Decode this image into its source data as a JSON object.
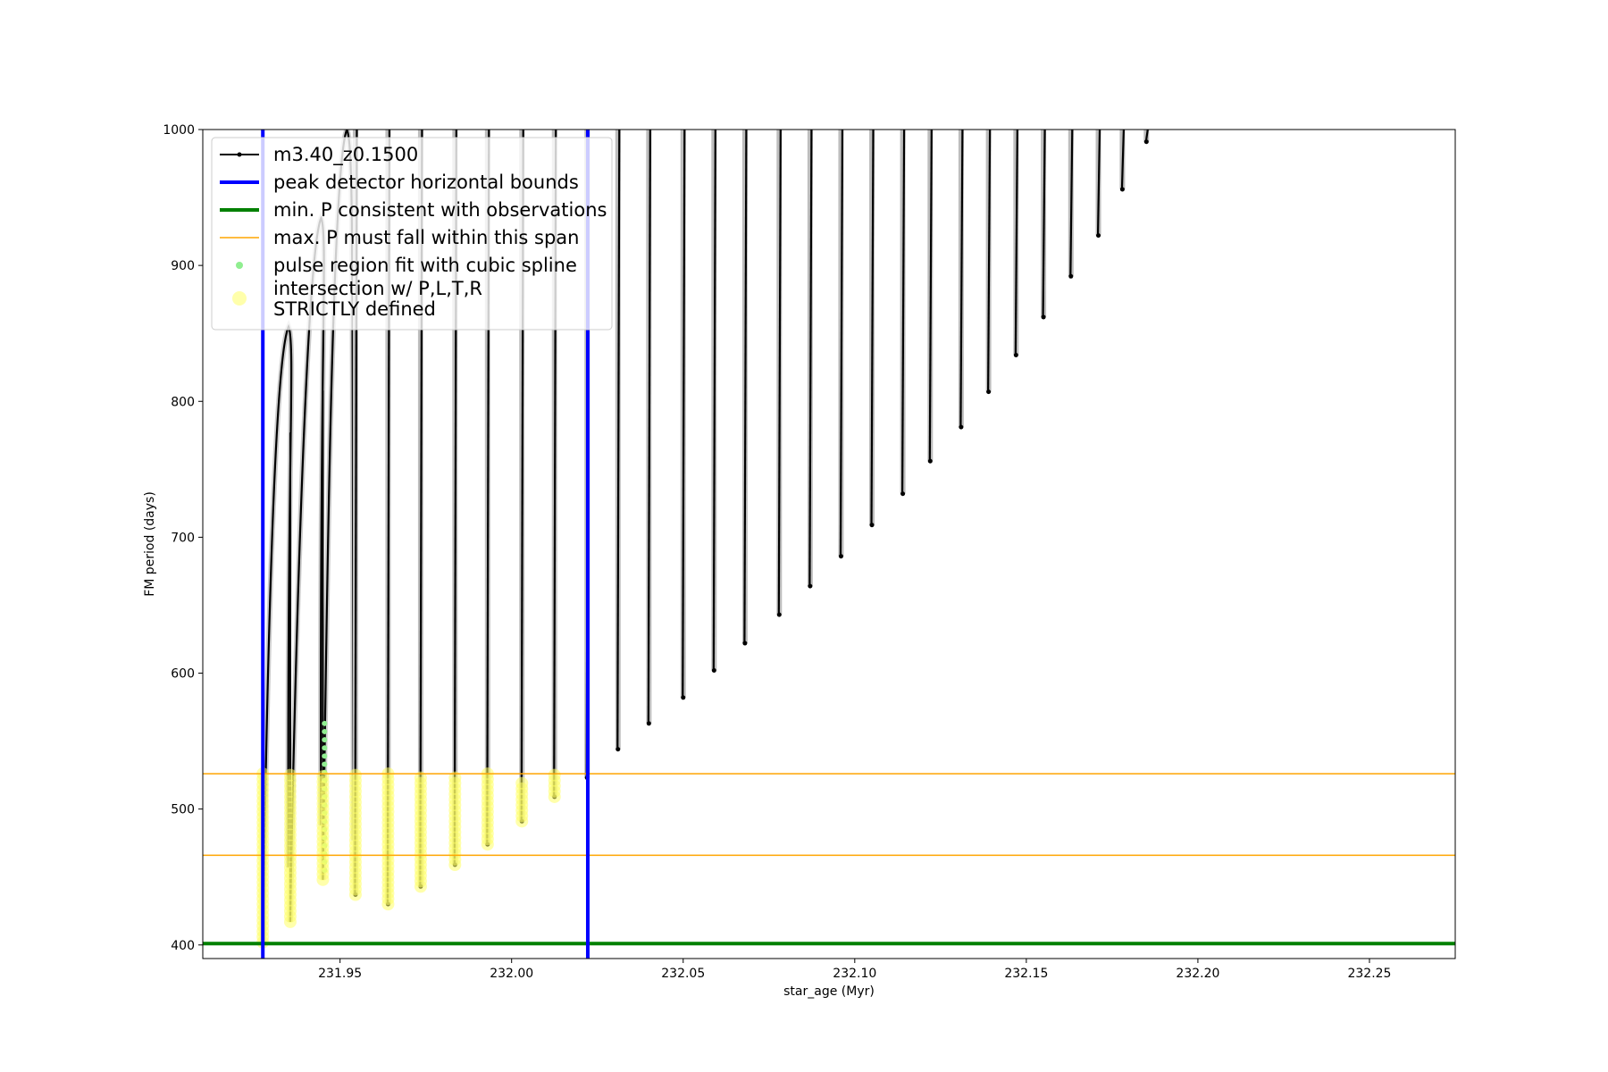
{
  "chart_data": {
    "type": "line",
    "title": "",
    "xlabel": "star_age (Myr)",
    "ylabel": "FM period (days)",
    "xlim": [
      231.91,
      232.275
    ],
    "ylim": [
      390,
      1000
    ],
    "xticks": [
      231.95,
      232.0,
      232.05,
      232.1,
      232.15,
      232.2,
      232.25
    ],
    "xtick_labels": [
      "231.95",
      "232.00",
      "232.05",
      "232.10",
      "232.15",
      "232.20",
      "232.25"
    ],
    "yticks": [
      400,
      500,
      600,
      700,
      800,
      900,
      1000
    ],
    "ytick_labels": [
      "400",
      "500",
      "600",
      "700",
      "800",
      "900",
      "1000"
    ],
    "grid": false,
    "legend_position": "top-left",
    "legend": [
      {
        "label": "m3.40_z0.1500",
        "kind": "line-marker",
        "color": "#000000"
      },
      {
        "label": "peak detector horizontal bounds",
        "kind": "line",
        "color": "#0000ff"
      },
      {
        "label": "min. P consistent with observations",
        "kind": "line",
        "color": "#008000"
      },
      {
        "label": "max. P must fall within this span",
        "kind": "line",
        "color": "#ffa500"
      },
      {
        "label": "pulse region fit with cubic spline",
        "kind": "dot",
        "color": "#90ee90"
      },
      {
        "label": "intersection w/ P,L,T,R\nSTRICTLY defined",
        "kind": "big-dot",
        "color": "#ffff66"
      }
    ],
    "reference_lines": {
      "vertical_blue": [
        231.9275,
        232.0222
      ],
      "horizontal_green": 401,
      "horizontal_orange": [
        466,
        526
      ]
    },
    "series": [
      {
        "name": "m3.40_z0.1500",
        "color": "#000000",
        "pulses": [
          {
            "x": 231.9275,
            "min": 402,
            "max": 855,
            "peak_x": 231.935
          },
          {
            "x": 231.9355,
            "min": 417,
            "max": 935,
            "peak_x": 231.9445
          },
          {
            "x": 231.945,
            "min": 448,
            "max": 1000,
            "peak_x": 231.952
          },
          {
            "x": 231.9545,
            "min": 437,
            "max": 1000
          },
          {
            "x": 231.964,
            "min": 430,
            "max": 1000
          },
          {
            "x": 231.9735,
            "min": 443,
            "max": 1000
          },
          {
            "x": 231.9835,
            "min": 459,
            "max": 1000
          },
          {
            "x": 231.993,
            "min": 474,
            "max": 1000
          },
          {
            "x": 232.003,
            "min": 491,
            "max": 1000
          },
          {
            "x": 232.0125,
            "min": 509,
            "max": 1000
          },
          {
            "x": 232.022,
            "min": 523,
            "max": 1000
          },
          {
            "x": 232.031,
            "min": 544,
            "max": 1000
          },
          {
            "x": 232.04,
            "min": 563,
            "max": 1000
          },
          {
            "x": 232.05,
            "min": 582,
            "max": 1000
          },
          {
            "x": 232.059,
            "min": 602,
            "max": 1000
          },
          {
            "x": 232.068,
            "min": 622,
            "max": 1000
          },
          {
            "x": 232.078,
            "min": 643,
            "max": 1000
          },
          {
            "x": 232.087,
            "min": 664,
            "max": 1000
          },
          {
            "x": 232.096,
            "min": 686,
            "max": 1000
          },
          {
            "x": 232.105,
            "min": 709,
            "max": 1000
          },
          {
            "x": 232.114,
            "min": 732,
            "max": 1000
          },
          {
            "x": 232.122,
            "min": 756,
            "max": 1000
          },
          {
            "x": 232.131,
            "min": 781,
            "max": 1000
          },
          {
            "x": 232.139,
            "min": 807,
            "max": 1000
          },
          {
            "x": 232.147,
            "min": 834,
            "max": 1000
          },
          {
            "x": 232.155,
            "min": 862,
            "max": 1000
          },
          {
            "x": 232.163,
            "min": 892,
            "max": 1000
          },
          {
            "x": 232.171,
            "min": 922,
            "max": 1000
          },
          {
            "x": 232.178,
            "min": 956,
            "max": 1000
          },
          {
            "x": 232.185,
            "min": 991,
            "max": 1000
          }
        ]
      },
      {
        "name": "pulse region fit with cubic spline",
        "color": "#90ee90",
        "segments": [
          {
            "x": 231.9455,
            "from": 455,
            "to": 568
          }
        ]
      },
      {
        "name": "intersection w/ P,L,T,R STRICTLY defined",
        "color": "#ffff66",
        "clusters": [
          {
            "x": 231.9275,
            "from": 402,
            "to": 526
          },
          {
            "x": 231.9355,
            "from": 417,
            "to": 526
          },
          {
            "x": 231.945,
            "from": 448,
            "to": 526
          },
          {
            "x": 231.9545,
            "from": 437,
            "to": 526
          },
          {
            "x": 231.964,
            "from": 430,
            "to": 526
          },
          {
            "x": 231.9735,
            "from": 443,
            "to": 526
          },
          {
            "x": 231.9835,
            "from": 459,
            "to": 526
          },
          {
            "x": 231.993,
            "from": 474,
            "to": 526
          },
          {
            "x": 232.003,
            "from": 491,
            "to": 520
          },
          {
            "x": 232.0125,
            "from": 509,
            "to": 526
          }
        ]
      }
    ]
  }
}
